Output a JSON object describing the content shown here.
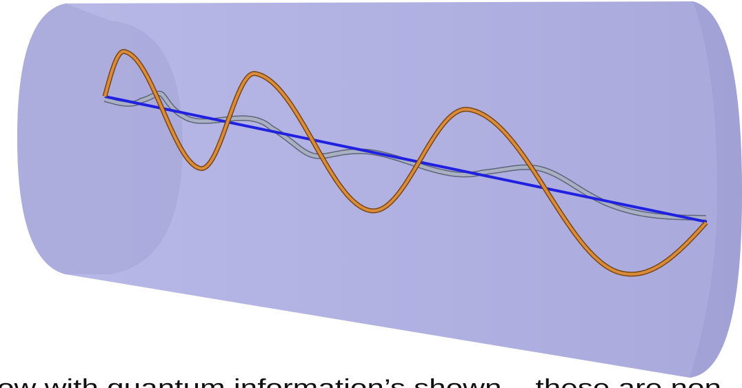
{
  "caption": "ow with quantum information’s shown – these are non"
}
